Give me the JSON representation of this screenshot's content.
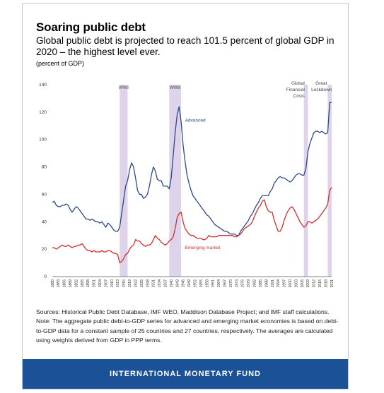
{
  "header": {
    "title": "Soaring public debt",
    "subtitle": "Global public debt is projected to reach 101.5 percent of global GDP in 2020 – the highest level ever.",
    "unit": "(percent of GDP)"
  },
  "notes": {
    "sources": "Sources: Historical Public Debt Database, IMF WEO, Maddison Database Project; and IMF staff calculations.",
    "note": "Note: The aggregate public debt-to-GDP series for advanced and emerging market economies is based on debt-to-GDP data for a constant sample of 25 countries and 27 countries, respectively. The averages are calculated using weights derived from GDP in PPP terms."
  },
  "footer": {
    "label": "INTERNATIONAL MONETARY FUND"
  },
  "colors": {
    "advanced": "#2b4a85",
    "emerging": "#d62d2d",
    "shade": "#ddd3ea",
    "footer": "#1b5196"
  },
  "chart_data": {
    "type": "line",
    "xlim": [
      1880,
      2021
    ],
    "ylim": [
      0,
      140
    ],
    "yticks": [
      0,
      20,
      40,
      60,
      80,
      100,
      120,
      140
    ],
    "xtick_start": 1880,
    "xtick_step": 3,
    "xtick_last": 2021,
    "grid": false,
    "shaded_periods": [
      {
        "label": "WWI",
        "start": 1914,
        "end": 1918
      },
      {
        "label": "WWII",
        "start": 1939,
        "end": 1945
      },
      {
        "label": "Global Financial Crisis",
        "start": 2007,
        "end": 2009
      },
      {
        "label": "Great Lockdown",
        "start": 2019,
        "end": 2021
      }
    ],
    "series": [
      {
        "name": "Advanced",
        "points": [
          [
            1880,
            54
          ],
          [
            1881,
            55
          ],
          [
            1882,
            52
          ],
          [
            1883,
            51
          ],
          [
            1884,
            51
          ],
          [
            1885,
            52
          ],
          [
            1886,
            52
          ],
          [
            1887,
            53
          ],
          [
            1888,
            52
          ],
          [
            1889,
            49
          ],
          [
            1890,
            47
          ],
          [
            1891,
            49
          ],
          [
            1892,
            51
          ],
          [
            1893,
            50
          ],
          [
            1894,
            48
          ],
          [
            1895,
            46
          ],
          [
            1896,
            44
          ],
          [
            1897,
            42
          ],
          [
            1898,
            42
          ],
          [
            1899,
            41
          ],
          [
            1900,
            42
          ],
          [
            1901,
            41
          ],
          [
            1902,
            40
          ],
          [
            1903,
            40
          ],
          [
            1904,
            39
          ],
          [
            1905,
            40
          ],
          [
            1906,
            38
          ],
          [
            1907,
            36
          ],
          [
            1908,
            39
          ],
          [
            1909,
            38
          ],
          [
            1910,
            36
          ],
          [
            1911,
            34
          ],
          [
            1912,
            33
          ],
          [
            1913,
            33
          ],
          [
            1914,
            36
          ],
          [
            1915,
            46
          ],
          [
            1916,
            56
          ],
          [
            1917,
            66
          ],
          [
            1918,
            70
          ],
          [
            1919,
            78
          ],
          [
            1920,
            83
          ],
          [
            1921,
            80
          ],
          [
            1922,
            72
          ],
          [
            1923,
            63
          ],
          [
            1924,
            60
          ],
          [
            1925,
            60
          ],
          [
            1926,
            57
          ],
          [
            1927,
            58
          ],
          [
            1928,
            60
          ],
          [
            1929,
            66
          ],
          [
            1930,
            74
          ],
          [
            1931,
            80
          ],
          [
            1932,
            77
          ],
          [
            1933,
            71
          ],
          [
            1934,
            70
          ],
          [
            1935,
            70
          ],
          [
            1936,
            66
          ],
          [
            1937,
            66
          ],
          [
            1938,
            66
          ],
          [
            1939,
            64
          ],
          [
            1940,
            72
          ],
          [
            1941,
            88
          ],
          [
            1942,
            105
          ],
          [
            1943,
            118
          ],
          [
            1944,
            124
          ],
          [
            1945,
            113
          ],
          [
            1946,
            96
          ],
          [
            1947,
            84
          ],
          [
            1948,
            74
          ],
          [
            1949,
            68
          ],
          [
            1950,
            63
          ],
          [
            1951,
            59
          ],
          [
            1952,
            57
          ],
          [
            1953,
            55
          ],
          [
            1954,
            53
          ],
          [
            1955,
            51
          ],
          [
            1956,
            49
          ],
          [
            1957,
            47
          ],
          [
            1958,
            45
          ],
          [
            1959,
            44
          ],
          [
            1960,
            42
          ],
          [
            1961,
            40
          ],
          [
            1962,
            38
          ],
          [
            1963,
            37
          ],
          [
            1964,
            36
          ],
          [
            1965,
            35
          ],
          [
            1966,
            34
          ],
          [
            1967,
            33
          ],
          [
            1968,
            33
          ],
          [
            1969,
            32
          ],
          [
            1970,
            31
          ],
          [
            1971,
            31
          ],
          [
            1972,
            31
          ],
          [
            1973,
            30
          ],
          [
            1974,
            30
          ],
          [
            1975,
            33
          ],
          [
            1976,
            35
          ],
          [
            1977,
            37
          ],
          [
            1978,
            39
          ],
          [
            1979,
            41
          ],
          [
            1980,
            44
          ],
          [
            1981,
            46
          ],
          [
            1982,
            49
          ],
          [
            1983,
            52
          ],
          [
            1984,
            54
          ],
          [
            1985,
            57
          ],
          [
            1986,
            59
          ],
          [
            1987,
            59
          ],
          [
            1988,
            59
          ],
          [
            1989,
            59
          ],
          [
            1990,
            62
          ],
          [
            1991,
            64
          ],
          [
            1992,
            68
          ],
          [
            1993,
            70
          ],
          [
            1994,
            72
          ],
          [
            1995,
            73
          ],
          [
            1996,
            72
          ],
          [
            1997,
            72
          ],
          [
            1998,
            71
          ],
          [
            1999,
            70
          ],
          [
            2000,
            69
          ],
          [
            2001,
            70
          ],
          [
            2002,
            72
          ],
          [
            2003,
            74
          ],
          [
            2004,
            75
          ],
          [
            2005,
            75
          ],
          [
            2006,
            74
          ],
          [
            2007,
            74
          ],
          [
            2008,
            79
          ],
          [
            2009,
            91
          ],
          [
            2010,
            97
          ],
          [
            2011,
            101
          ],
          [
            2012,
            105
          ],
          [
            2013,
            106
          ],
          [
            2014,
            106
          ],
          [
            2015,
            105
          ],
          [
            2016,
            106
          ],
          [
            2017,
            105
          ],
          [
            2018,
            104
          ],
          [
            2019,
            105
          ],
          [
            2020,
            127
          ],
          [
            2021,
            127
          ]
        ]
      },
      {
        "name": "Emerging market",
        "points": [
          [
            1880,
            21
          ],
          [
            1881,
            21
          ],
          [
            1882,
            20
          ],
          [
            1883,
            21
          ],
          [
            1884,
            22
          ],
          [
            1885,
            23
          ],
          [
            1886,
            22
          ],
          [
            1887,
            22
          ],
          [
            1888,
            23
          ],
          [
            1889,
            22
          ],
          [
            1890,
            21
          ],
          [
            1891,
            22
          ],
          [
            1892,
            22
          ],
          [
            1893,
            23
          ],
          [
            1894,
            23
          ],
          [
            1895,
            24
          ],
          [
            1896,
            22
          ],
          [
            1897,
            20
          ],
          [
            1898,
            19
          ],
          [
            1899,
            19
          ],
          [
            1900,
            18
          ],
          [
            1901,
            19
          ],
          [
            1902,
            18
          ],
          [
            1903,
            18
          ],
          [
            1904,
            18
          ],
          [
            1905,
            19
          ],
          [
            1906,
            18
          ],
          [
            1907,
            18
          ],
          [
            1908,
            19
          ],
          [
            1909,
            19
          ],
          [
            1910,
            18
          ],
          [
            1911,
            17
          ],
          [
            1912,
            17
          ],
          [
            1913,
            16
          ],
          [
            1914,
            10
          ],
          [
            1915,
            11
          ],
          [
            1916,
            13
          ],
          [
            1917,
            16
          ],
          [
            1918,
            17
          ],
          [
            1919,
            20
          ],
          [
            1920,
            22
          ],
          [
            1921,
            23
          ],
          [
            1922,
            27
          ],
          [
            1923,
            26
          ],
          [
            1924,
            26
          ],
          [
            1925,
            24
          ],
          [
            1926,
            23
          ],
          [
            1927,
            22
          ],
          [
            1928,
            23
          ],
          [
            1929,
            23
          ],
          [
            1930,
            24
          ],
          [
            1931,
            27
          ],
          [
            1932,
            30
          ],
          [
            1933,
            28
          ],
          [
            1934,
            27
          ],
          [
            1935,
            25
          ],
          [
            1936,
            24
          ],
          [
            1937,
            23
          ],
          [
            1938,
            24
          ],
          [
            1939,
            26
          ],
          [
            1940,
            27
          ],
          [
            1941,
            29
          ],
          [
            1942,
            35
          ],
          [
            1943,
            43
          ],
          [
            1944,
            46
          ],
          [
            1945,
            47
          ],
          [
            1946,
            40
          ],
          [
            1947,
            35
          ],
          [
            1948,
            33
          ],
          [
            1949,
            31
          ],
          [
            1950,
            30
          ],
          [
            1951,
            30
          ],
          [
            1952,
            29
          ],
          [
            1953,
            28
          ],
          [
            1954,
            28
          ],
          [
            1955,
            28
          ],
          [
            1956,
            27
          ],
          [
            1957,
            27
          ],
          [
            1958,
            28
          ],
          [
            1959,
            30
          ],
          [
            1960,
            29
          ],
          [
            1961,
            29
          ],
          [
            1962,
            29
          ],
          [
            1963,
            29
          ],
          [
            1964,
            30
          ],
          [
            1965,
            30
          ],
          [
            1966,
            30
          ],
          [
            1967,
            30
          ],
          [
            1968,
            30
          ],
          [
            1969,
            30
          ],
          [
            1970,
            30
          ],
          [
            1971,
            30
          ],
          [
            1972,
            29
          ],
          [
            1973,
            29
          ],
          [
            1974,
            30
          ],
          [
            1975,
            31
          ],
          [
            1976,
            33
          ],
          [
            1977,
            35
          ],
          [
            1978,
            36
          ],
          [
            1979,
            37
          ],
          [
            1980,
            38
          ],
          [
            1981,
            40
          ],
          [
            1982,
            44
          ],
          [
            1983,
            47
          ],
          [
            1984,
            50
          ],
          [
            1985,
            52
          ],
          [
            1986,
            55
          ],
          [
            1987,
            56
          ],
          [
            1988,
            51
          ],
          [
            1989,
            48
          ],
          [
            1990,
            47
          ],
          [
            1991,
            47
          ],
          [
            1992,
            41
          ],
          [
            1993,
            37
          ],
          [
            1994,
            33
          ],
          [
            1995,
            33
          ],
          [
            1996,
            36
          ],
          [
            1997,
            41
          ],
          [
            1998,
            45
          ],
          [
            1999,
            48
          ],
          [
            2000,
            50
          ],
          [
            2001,
            51
          ],
          [
            2002,
            49
          ],
          [
            2003,
            46
          ],
          [
            2004,
            43
          ],
          [
            2005,
            40
          ],
          [
            2006,
            38
          ],
          [
            2007,
            36
          ],
          [
            2008,
            37
          ],
          [
            2009,
            40
          ],
          [
            2010,
            40
          ],
          [
            2011,
            39
          ],
          [
            2012,
            40
          ],
          [
            2013,
            41
          ],
          [
            2014,
            42
          ],
          [
            2015,
            44
          ],
          [
            2016,
            46
          ],
          [
            2017,
            48
          ],
          [
            2018,
            50
          ],
          [
            2019,
            53
          ],
          [
            2020,
            63
          ],
          [
            2021,
            65
          ]
        ]
      }
    ],
    "annotations": [
      {
        "text": "Advanced",
        "x": 1947,
        "y": 113,
        "series": "Advanced"
      },
      {
        "text": "Emerging market",
        "x": 1947,
        "y": 20,
        "series": "Emerging market"
      }
    ]
  }
}
